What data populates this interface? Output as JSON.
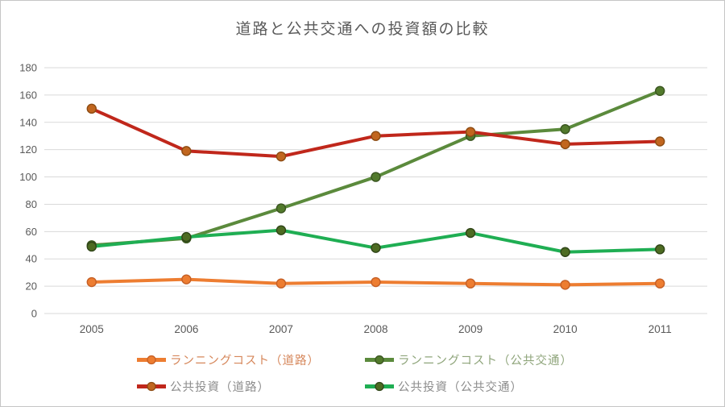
{
  "window": {
    "background": "#ffffff",
    "frame_border_color": "#c6c6c6"
  },
  "chart_data": {
    "type": "line",
    "title": "道路と公共交通への投資額の比較",
    "title_color": "#595959",
    "categories": [
      "2005",
      "2006",
      "2007",
      "2008",
      "2009",
      "2010",
      "2011"
    ],
    "series": [
      {
        "name": "ランニングコスト（道路）",
        "values": [
          23,
          25,
          22,
          23,
          22,
          21,
          22
        ],
        "line_color": "#ED7D31",
        "marker_fill": "#ED7D31",
        "marker_stroke": "#C55F25",
        "label_color": "#D6875B"
      },
      {
        "name": "ランニングコスト（公共交通）",
        "values": [
          50,
          55,
          77,
          100,
          130,
          135,
          163
        ],
        "line_color": "#5B8A3C",
        "marker_fill": "#527A2C",
        "marker_stroke": "#3A5520",
        "label_color": "#8FA57B"
      },
      {
        "name": "公共投資（道路）",
        "values": [
          150,
          119,
          115,
          130,
          133,
          124,
          126
        ],
        "line_color": "#C0271B",
        "marker_fill": "#C1661F",
        "marker_stroke": "#8C4B12",
        "label_color": "#8C8C8C"
      },
      {
        "name": "公共投資（公共交通）",
        "values": [
          49,
          56,
          61,
          48,
          59,
          45,
          47
        ],
        "line_color": "#1FAE53",
        "marker_fill": "#4D6B22",
        "marker_stroke": "#2F4417",
        "label_color": "#8C8C8C"
      }
    ],
    "ylim": [
      0,
      180
    ],
    "ytick_step": 20,
    "grid": true,
    "gridline_color": "#D9D9D9",
    "tick_label_color": "#595959",
    "legend_position": "bottom"
  }
}
